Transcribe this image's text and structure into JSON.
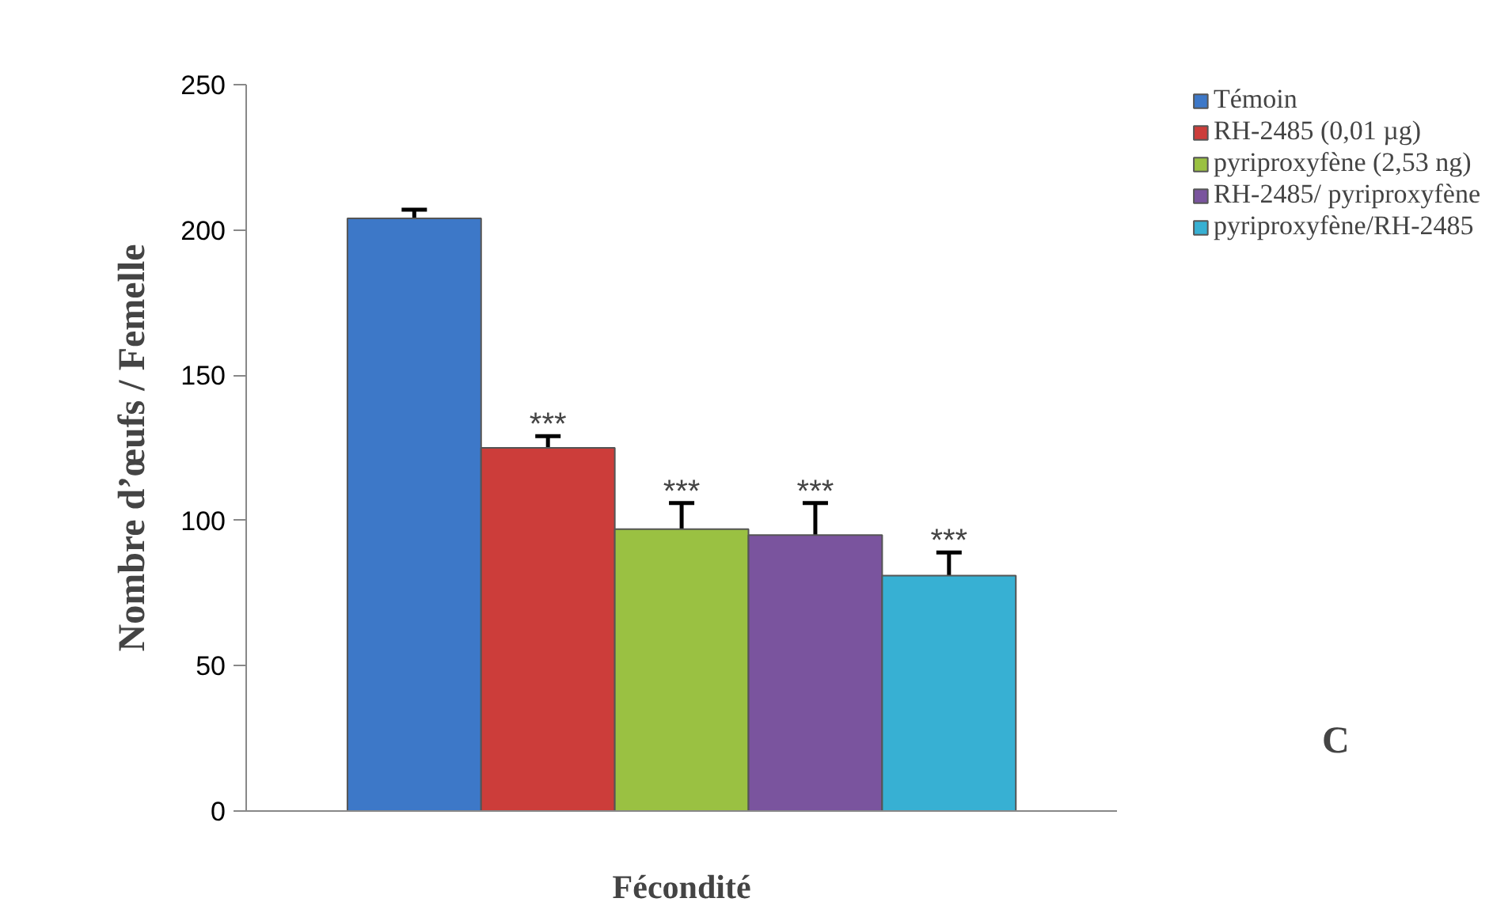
{
  "chart_data": {
    "type": "bar",
    "ylabel": "Nombre d’œufs / Femelle",
    "categories": [
      "Fécondité"
    ],
    "series": [
      {
        "name": "Témoin",
        "color": "#3d78c8",
        "values": [
          204
        ],
        "errors": [
          3
        ]
      },
      {
        "name": "RH-2485 (0,01 µg)",
        "color": "#cc3d3a",
        "values": [
          125
        ],
        "errors": [
          4
        ],
        "value_labels": [
          "***"
        ]
      },
      {
        "name": "pyriproxyfène (2,53 ng)",
        "color": "#9ac142",
        "values": [
          97
        ],
        "errors": [
          9
        ],
        "value_labels": [
          "***"
        ]
      },
      {
        "name": "RH-2485/ pyriproxyfène",
        "color": "#7a549e",
        "values": [
          95
        ],
        "errors": [
          11
        ],
        "value_labels": [
          "***"
        ]
      },
      {
        "name": "pyriproxyfène/RH-2485",
        "color": "#37b0d3",
        "values": [
          81
        ],
        "errors": [
          8
        ],
        "value_labels": [
          "***"
        ]
      }
    ],
    "ylim": [
      0,
      250
    ],
    "yticks": [
      0,
      50,
      100,
      150,
      200,
      250
    ],
    "grid": false,
    "legend": "top right",
    "annotations": [
      "C"
    ]
  }
}
